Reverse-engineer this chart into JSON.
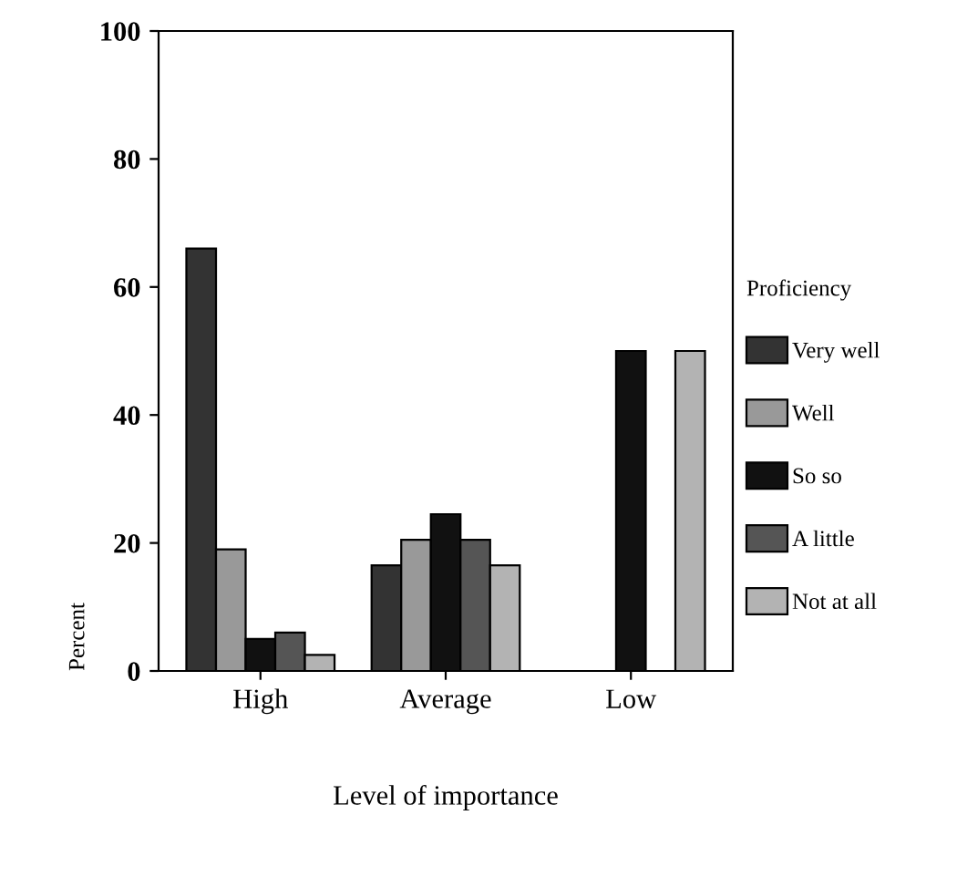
{
  "chart_data": {
    "type": "bar",
    "xlabel": "Level of importance",
    "ylabel": "Percent",
    "legend_title": "Proficiency",
    "legend": "right",
    "categories": [
      "High",
      "Average",
      "Low"
    ],
    "series": [
      {
        "name": "Very well",
        "color": "#333333",
        "values": [
          66,
          16.5,
          null
        ]
      },
      {
        "name": "Well",
        "color": "#999999",
        "values": [
          19,
          20.5,
          null
        ]
      },
      {
        "name": "So so",
        "color": "#111111",
        "values": [
          5,
          24.5,
          50
        ]
      },
      {
        "name": "A little",
        "color": "#555555",
        "values": [
          6,
          20.5,
          null
        ]
      },
      {
        "name": "Not at all",
        "color": "#b3b3b3",
        "values": [
          2.5,
          16.5,
          50
        ]
      }
    ],
    "ylim": [
      0,
      100
    ],
    "yticks": [
      0,
      20,
      40,
      60,
      80,
      100
    ],
    "grid": false
  }
}
